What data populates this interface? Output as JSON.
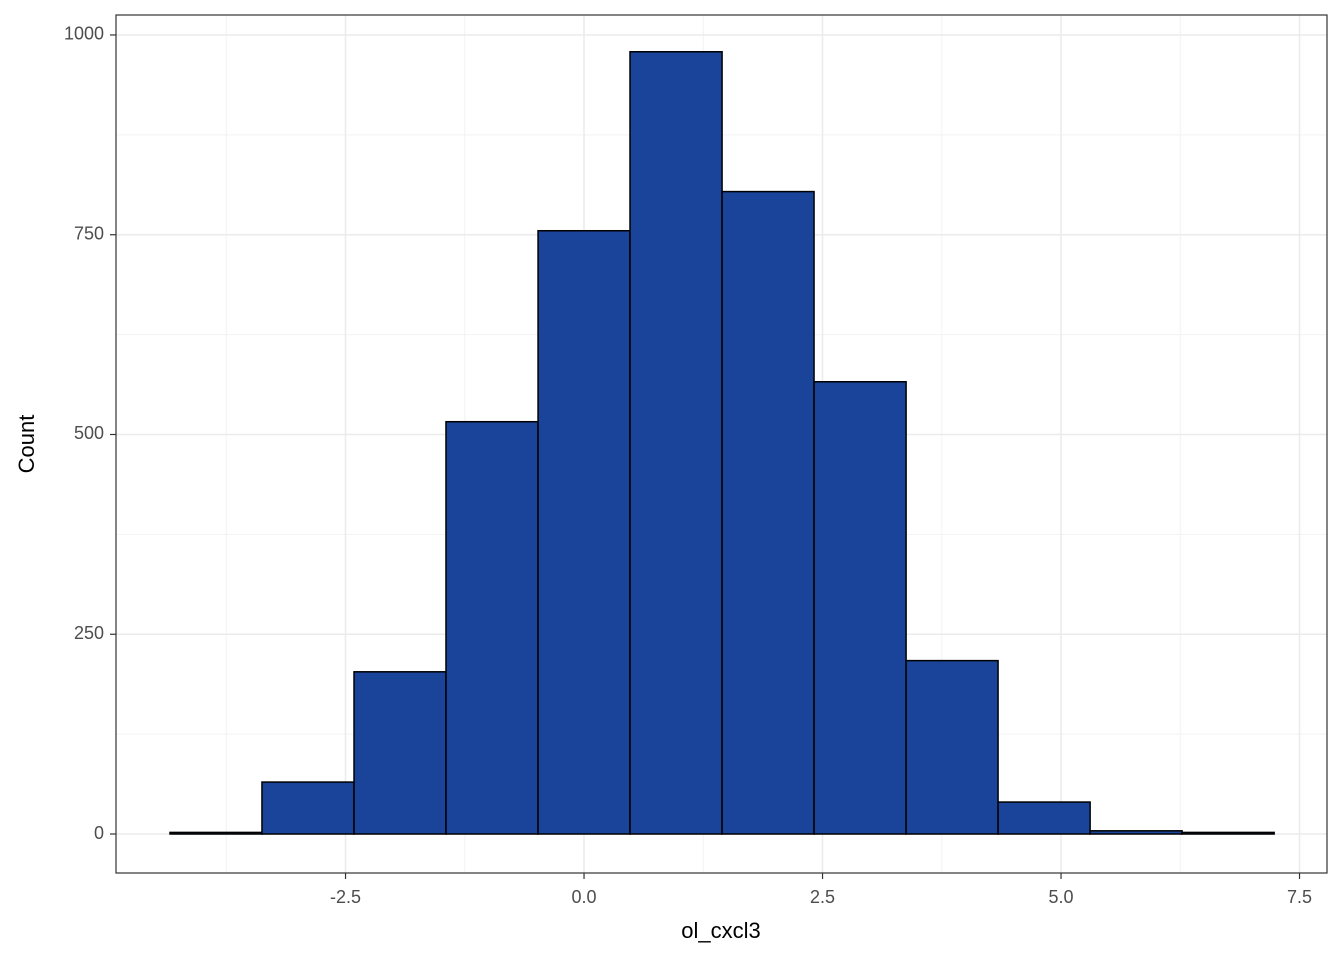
{
  "chart_data": {
    "type": "histogram",
    "x_label": "ol_cxcl3",
    "y_label": "Count",
    "bins": [
      -4.34,
      -3.376,
      -2.411,
      -1.447,
      -0.482,
      0.482,
      1.447,
      2.411,
      3.376,
      4.34,
      5.305,
      6.269,
      7.234
    ],
    "values": [
      2,
      65,
      203,
      516,
      755,
      979,
      804,
      566,
      217,
      40,
      4,
      2
    ],
    "color": "#1a4499",
    "edge_color": "#000000",
    "xlim": [
      -4.906,
      7.788
    ],
    "ylim": [
      -48.8,
      1025
    ],
    "xticks": [
      -2.5,
      {
        "value": 0,
        "label": "0.0"
      },
      2.5,
      {
        "value": 5,
        "label": "5.0"
      },
      {
        "value": 7.5,
        "label": "7.5"
      }
    ],
    "yticks": [
      0,
      250,
      500,
      750,
      1000
    ],
    "grid": true
  }
}
